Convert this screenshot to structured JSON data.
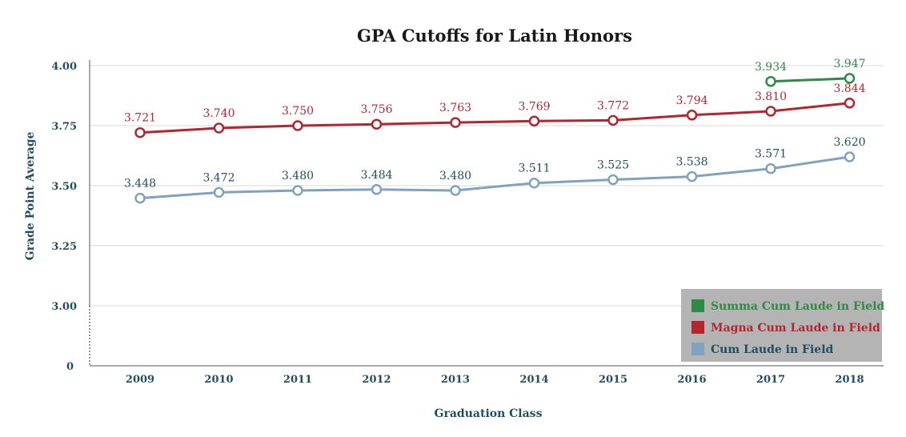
{
  "chart_data": {
    "type": "line",
    "title": "GPA Cutoffs for Latin Honors",
    "xlabel": "Graduation Class",
    "ylabel": "Grade Point Average",
    "x": [
      "2009",
      "2010",
      "2011",
      "2012",
      "2013",
      "2014",
      "2015",
      "2016",
      "2017",
      "2018"
    ],
    "y_axis_break": true,
    "y_ticks": [
      {
        "value": 3.0,
        "label": "3.00"
      },
      {
        "value": 3.25,
        "label": "3.25"
      },
      {
        "value": 3.5,
        "label": "3.50"
      },
      {
        "value": 3.75,
        "label": "3.75"
      },
      {
        "value": 4.0,
        "label": "4.00"
      }
    ],
    "y_floor_label": "0",
    "ylim": [
      3.0,
      4.0
    ],
    "grid": true,
    "legend_position": "bottom-right",
    "series": [
      {
        "name": "Summa Cum Laude in Field",
        "color": "#2e8b47",
        "values": [
          null,
          null,
          null,
          null,
          null,
          null,
          null,
          null,
          3.934,
          3.947
        ],
        "labels": [
          "",
          "",
          "",
          "",
          "",
          "",
          "",
          "",
          "3.934",
          "3.947"
        ]
      },
      {
        "name": "Magna Cum Laude in Field",
        "color": "#b3262f",
        "values": [
          3.721,
          3.74,
          3.75,
          3.756,
          3.763,
          3.769,
          3.772,
          3.794,
          3.81,
          3.844
        ],
        "labels": [
          "3.721",
          "3.740",
          "3.750",
          "3.756",
          "3.763",
          "3.769",
          "3.772",
          "3.794",
          "3.810",
          "3.844"
        ]
      },
      {
        "name": "Cum Laude in Field",
        "color": "#7fa2c0",
        "label_color": "#1f4e5f",
        "values": [
          3.448,
          3.472,
          3.48,
          3.484,
          3.48,
          3.511,
          3.525,
          3.538,
          3.571,
          3.62
        ],
        "labels": [
          "3.448",
          "3.472",
          "3.480",
          "3.484",
          "3.480",
          "3.511",
          "3.525",
          "3.538",
          "3.571",
          "3.620"
        ]
      }
    ]
  },
  "colors": {
    "axis_text": "#1f4e5f",
    "grid": "#d8d8d8",
    "legend_bg": "#b4b4b4"
  }
}
